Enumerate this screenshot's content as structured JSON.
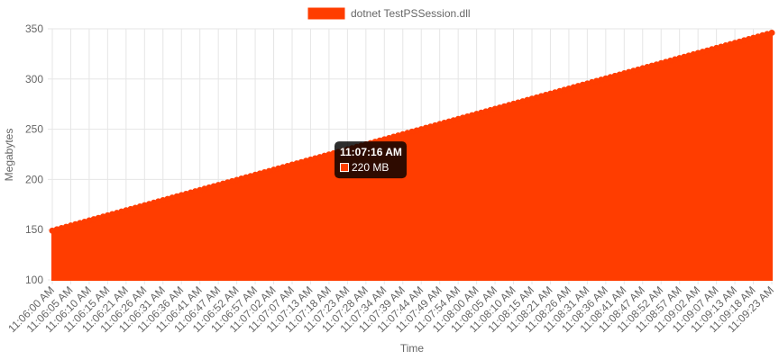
{
  "chart_data": {
    "type": "area",
    "title": "",
    "xlabel": "Time",
    "ylabel": "Megabytes",
    "ylim": [
      100,
      350
    ],
    "yticks": [
      100,
      150,
      200,
      250,
      300,
      350
    ],
    "grid": true,
    "legend_position": "top",
    "x_tick_labels": [
      "11:06:00 AM",
      "11:06:05 AM",
      "11:06:10 AM",
      "11:06:15 AM",
      "11:06:21 AM",
      "11:06:26 AM",
      "11:06:31 AM",
      "11:06:36 AM",
      "11:06:41 AM",
      "11:06:47 AM",
      "11:06:52 AM",
      "11:06:57 AM",
      "11:07:02 AM",
      "11:07:07 AM",
      "11:07:13 AM",
      "11:07:18 AM",
      "11:07:23 AM",
      "11:07:28 AM",
      "11:07:34 AM",
      "11:07:39 AM",
      "11:07:44 AM",
      "11:07:49 AM",
      "11:07:54 AM",
      "11:08:00 AM",
      "11:08:05 AM",
      "11:08:10 AM",
      "11:08:15 AM",
      "11:08:21 AM",
      "11:08:26 AM",
      "11:08:31 AM",
      "11:08:36 AM",
      "11:08:41 AM",
      "11:08:47 AM",
      "11:08:52 AM",
      "11:08:57 AM",
      "11:09:02 AM",
      "11:09:07 AM",
      "11:09:13 AM",
      "11:09:18 AM",
      "11:09:23 AM"
    ],
    "points_per_tick": 4,
    "series": [
      {
        "name": "dotnet TestPSSession.dll",
        "color": "#ff3d00",
        "y_start": 149,
        "y_end": 346
      }
    ],
    "tooltip": {
      "title": "11:07:16 AM",
      "label": "220 MB",
      "x_tick_position": 15.2,
      "value": 220
    }
  }
}
